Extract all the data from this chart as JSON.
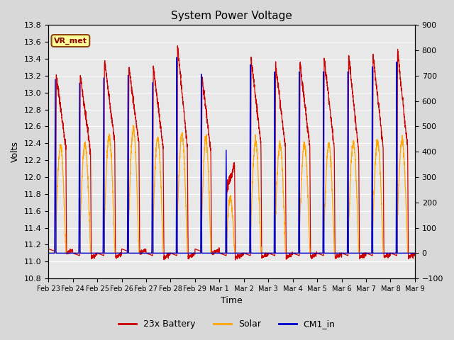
{
  "title": "System Power Voltage",
  "xlabel": "Time",
  "ylabel": "Volts",
  "ylim_left": [
    10.8,
    13.8
  ],
  "ylim_right": [
    -100,
    900
  ],
  "yticks_left": [
    10.8,
    11.0,
    11.2,
    11.4,
    11.6,
    11.8,
    12.0,
    12.2,
    12.4,
    12.6,
    12.8,
    13.0,
    13.2,
    13.4,
    13.6,
    13.8
  ],
  "yticks_right": [
    -100,
    0,
    100,
    200,
    300,
    400,
    500,
    600,
    700,
    800,
    900
  ],
  "background_color": "#d8d8d8",
  "plot_bg_color": "#e8e8e8",
  "grid_color": "#ffffff",
  "colors": {
    "battery": "#cc0000",
    "solar": "#ffa500",
    "cm1": "#0000cc"
  },
  "legend_labels": [
    "23x Battery",
    "Solar",
    "CM1_in"
  ],
  "annotation_text": "VR_met",
  "annotation_box_color": "#ffff99",
  "annotation_box_edge": "#8b4513",
  "num_days": 15,
  "day_labels": [
    "Feb 23",
    "Feb 24",
    "Feb 25",
    "Feb 26",
    "Feb 27",
    "Feb 28",
    "Feb 29",
    "Mar 1",
    "Mar 2",
    "Mar 3",
    "Mar 4",
    "Mar 5",
    "Mar 6",
    "Mar 7",
    "Mar 8",
    "Mar 9"
  ]
}
